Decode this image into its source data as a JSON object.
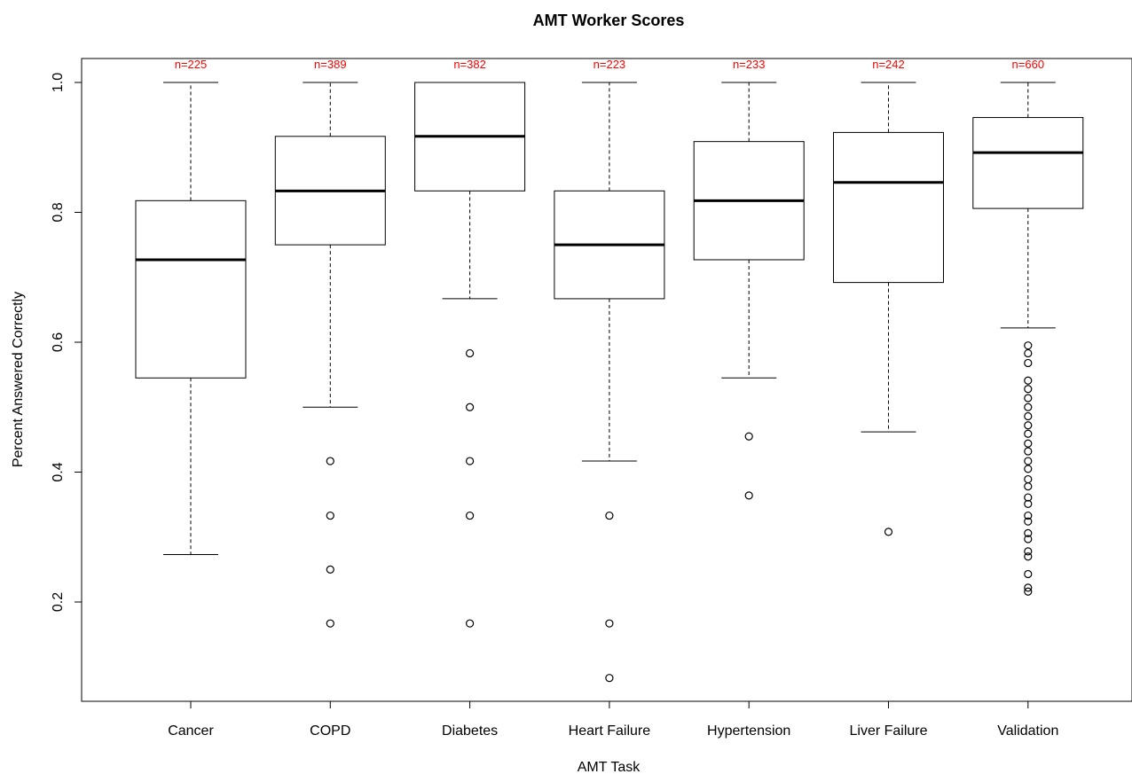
{
  "chart_data": {
    "type": "boxplot",
    "title": "AMT Worker Scores",
    "xlabel": "AMT Task",
    "ylabel": "Percent Answered Correctly",
    "ylim": [
      0.05,
      1.04
    ],
    "yticks": [
      0.2,
      0.4,
      0.6,
      0.8,
      1.0
    ],
    "ytick_labels": [
      "0.2",
      "0.4",
      "0.6",
      "0.8",
      "1.0"
    ],
    "grid": false,
    "annotation_color": "#ff0000",
    "categories": [
      "Cancer",
      "COPD",
      "Diabetes",
      "Heart Failure",
      "Hypertension",
      "Liver Failure",
      "Validation"
    ],
    "series": [
      {
        "category": "Cancer",
        "n_label": "n=225",
        "whisker_low": 0.273,
        "q1": 0.545,
        "median": 0.727,
        "q3": 0.818,
        "whisker_high": 1.0,
        "outliers": []
      },
      {
        "category": "COPD",
        "n_label": "n=389",
        "whisker_low": 0.5,
        "q1": 0.75,
        "median": 0.833,
        "q3": 0.917,
        "whisker_high": 1.0,
        "outliers": [
          0.417,
          0.333,
          0.25,
          0.167
        ]
      },
      {
        "category": "Diabetes",
        "n_label": "n=382",
        "whisker_low": 0.667,
        "q1": 0.833,
        "median": 0.917,
        "q3": 1.0,
        "whisker_high": 1.0,
        "outliers": [
          0.583,
          0.5,
          0.417,
          0.333,
          0.167
        ]
      },
      {
        "category": "Heart Failure",
        "n_label": "n=223",
        "whisker_low": 0.417,
        "q1": 0.667,
        "median": 0.75,
        "q3": 0.833,
        "whisker_high": 1.0,
        "outliers": [
          0.333,
          0.167,
          0.083
        ]
      },
      {
        "category": "Hypertension",
        "n_label": "n=233",
        "whisker_low": 0.545,
        "q1": 0.727,
        "median": 0.818,
        "q3": 0.909,
        "whisker_high": 1.0,
        "outliers": [
          0.455,
          0.364
        ]
      },
      {
        "category": "Liver Failure",
        "n_label": "n=242",
        "whisker_low": 0.462,
        "q1": 0.692,
        "median": 0.846,
        "q3": 0.923,
        "whisker_high": 1.0,
        "outliers": [
          0.308
        ]
      },
      {
        "category": "Validation",
        "n_label": "n=660",
        "whisker_low": 0.622,
        "q1": 0.806,
        "median": 0.892,
        "q3": 0.946,
        "whisker_high": 1.0,
        "outliers": [
          0.595,
          0.583,
          0.568,
          0.541,
          0.528,
          0.514,
          0.5,
          0.486,
          0.472,
          0.459,
          0.444,
          0.432,
          0.417,
          0.405,
          0.389,
          0.378,
          0.361,
          0.351,
          0.333,
          0.324,
          0.306,
          0.297,
          0.278,
          0.27,
          0.243,
          0.222,
          0.216
        ]
      }
    ]
  }
}
